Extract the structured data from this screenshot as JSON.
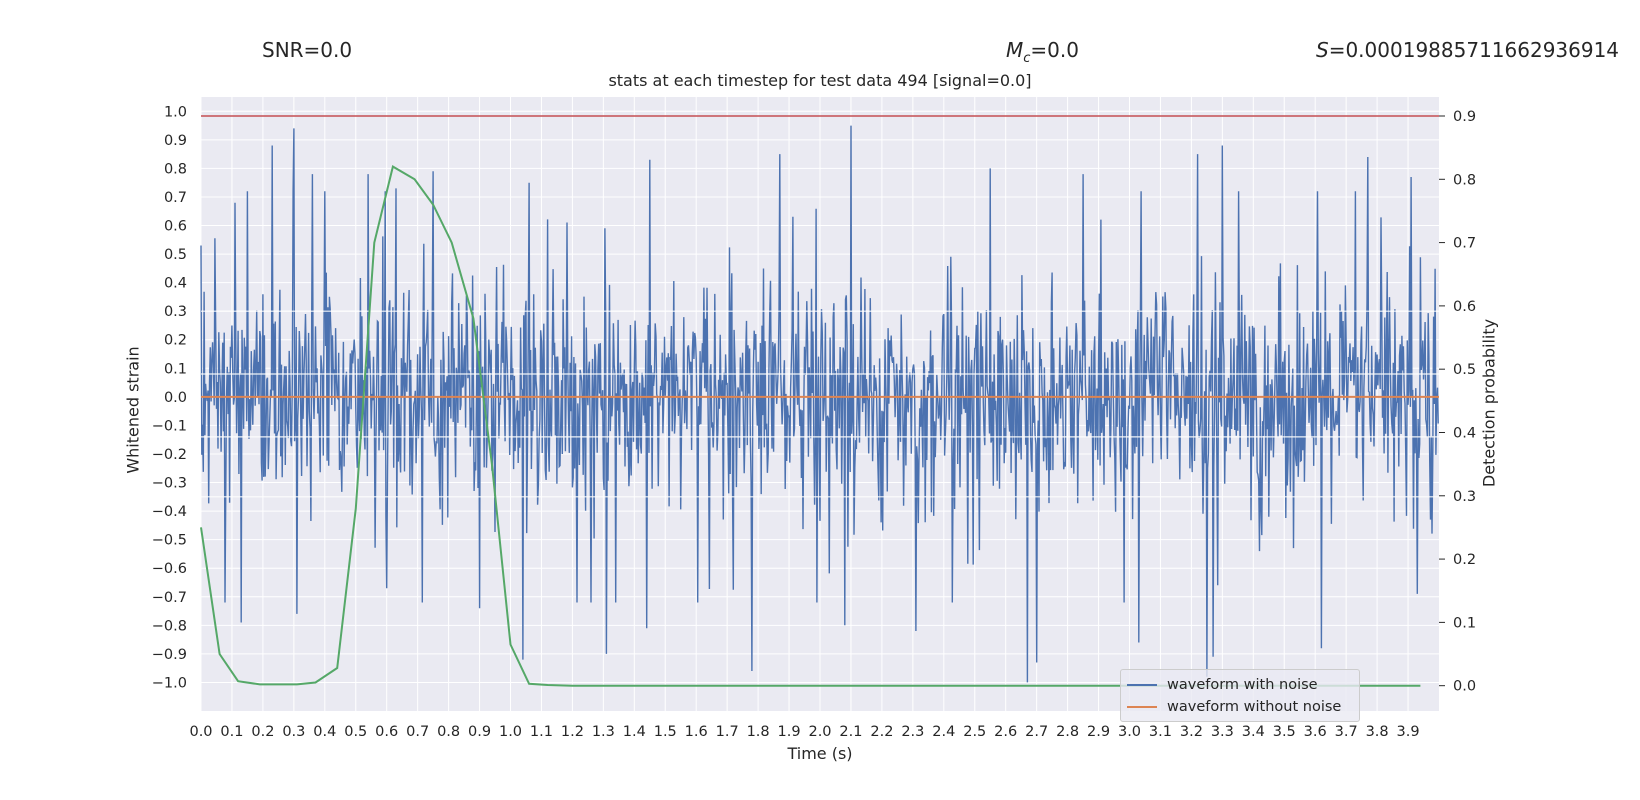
{
  "header": {
    "snr": "SNR=0.0",
    "mc_symbol": "M",
    "mc_sub": "c",
    "mc_value": "=0.0",
    "s_symbol": "S",
    "s_value": "=0.00019885711662936914"
  },
  "chart_data": {
    "type": "line",
    "title": "stats at each timestep for test data 494 [signal=0.0]",
    "xlabel": "Time (s)",
    "ylabel": "Whitened strain",
    "y2label": "Detection probability",
    "xlim": [
      0.0,
      4.0
    ],
    "ylim": [
      -1.1,
      1.05
    ],
    "y2lim": [
      -0.04,
      0.93
    ],
    "xticks": [
      "0.0",
      "0.1",
      "0.2",
      "0.3",
      "0.4",
      "0.5",
      "0.6",
      "0.7",
      "0.8",
      "0.9",
      "1.0",
      "1.1",
      "1.2",
      "1.3",
      "1.4",
      "1.5",
      "1.6",
      "1.7",
      "1.8",
      "1.9",
      "2.0",
      "2.1",
      "2.2",
      "2.3",
      "2.4",
      "2.5",
      "2.6",
      "2.7",
      "2.8",
      "2.9",
      "3.0",
      "3.1",
      "3.2",
      "3.3",
      "3.4",
      "3.5",
      "3.6",
      "3.7",
      "3.8",
      "3.9"
    ],
    "yticks": [
      "1.0",
      "0.9",
      "0.8",
      "0.7",
      "0.6",
      "0.5",
      "0.4",
      "0.3",
      "0.2",
      "0.1",
      "0.0",
      "−0.1",
      "−0.2",
      "−0.3",
      "−0.4",
      "−0.5",
      "−0.6",
      "−0.7",
      "−0.8",
      "−0.9",
      "−1.0"
    ],
    "y2ticks": [
      "0.9",
      "0.8",
      "0.7",
      "0.6",
      "0.5",
      "0.4",
      "0.3",
      "0.2",
      "0.1",
      "0.0"
    ],
    "grid": true,
    "legend_position": "lower-right",
    "series": [
      {
        "name": "waveform with noise",
        "color": "#4c72b0",
        "axis": "left",
        "note_type": "noise",
        "spikes_up": [
          [
            0.0,
            0.53
          ],
          [
            0.11,
            0.68
          ],
          [
            0.15,
            0.72
          ],
          [
            0.23,
            0.88
          ],
          [
            0.3,
            0.94
          ],
          [
            0.36,
            0.78
          ],
          [
            0.54,
            0.78
          ],
          [
            0.63,
            0.73
          ],
          [
            0.75,
            0.79
          ],
          [
            1.06,
            0.75
          ],
          [
            1.45,
            0.83
          ],
          [
            1.87,
            0.85
          ],
          [
            2.1,
            0.95
          ],
          [
            2.55,
            0.8
          ],
          [
            2.85,
            0.78
          ],
          [
            3.22,
            0.85
          ],
          [
            3.3,
            0.88
          ],
          [
            3.77,
            0.84
          ],
          [
            3.91,
            0.77
          ]
        ],
        "spikes_down": [
          [
            0.13,
            -0.79
          ],
          [
            0.31,
            -0.76
          ],
          [
            0.6,
            -0.67
          ],
          [
            0.9,
            -0.74
          ],
          [
            1.04,
            -0.92
          ],
          [
            1.31,
            -0.9
          ],
          [
            1.44,
            -0.81
          ],
          [
            1.78,
            -0.96
          ],
          [
            2.08,
            -0.8
          ],
          [
            2.31,
            -0.82
          ],
          [
            2.67,
            -1.0
          ],
          [
            2.7,
            -0.93
          ],
          [
            3.03,
            -0.86
          ],
          [
            3.25,
            -0.98
          ],
          [
            3.27,
            -0.91
          ],
          [
            3.62,
            -0.88
          ],
          [
            3.93,
            -0.69
          ]
        ]
      },
      {
        "name": "waveform without noise",
        "color": "#dd8452",
        "axis": "left",
        "x": [
          0.0,
          4.0
        ],
        "y": [
          0.0,
          0.0
        ]
      },
      {
        "color": "#55a868",
        "axis": "right",
        "x": [
          0.0,
          0.06,
          0.12,
          0.19,
          0.25,
          0.31,
          0.37,
          0.44,
          0.5,
          0.56,
          0.62,
          0.69,
          0.75,
          0.81,
          0.88,
          0.94,
          1.0,
          1.06,
          1.12,
          1.2,
          2.0,
          3.0,
          3.94
        ],
        "y": [
          0.25,
          0.05,
          0.007,
          0.002,
          0.002,
          0.002,
          0.005,
          0.028,
          0.28,
          0.7,
          0.82,
          0.8,
          0.76,
          0.7,
          0.58,
          0.35,
          0.065,
          0.003,
          0.001,
          0.0,
          0.0,
          0.0,
          0.0
        ]
      },
      {
        "color": "#c44e52",
        "axis": "right",
        "x": [
          0.0,
          4.0
        ],
        "y": [
          0.9,
          0.9
        ]
      }
    ]
  }
}
